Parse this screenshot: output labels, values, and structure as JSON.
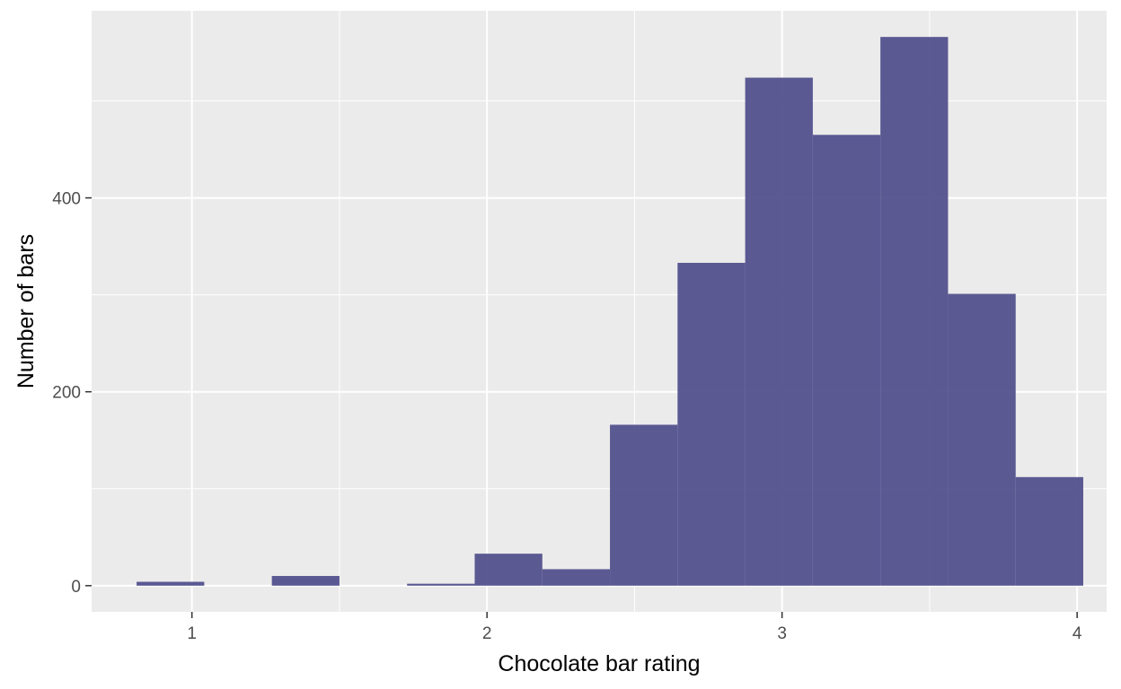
{
  "chart_data": {
    "type": "bar",
    "subtype": "histogram",
    "title": "",
    "xlabel": "Chocolate bar rating",
    "ylabel": "Number of bars",
    "xlim": [
      0.66,
      4.1
    ],
    "ylim": [
      -27,
      593
    ],
    "x_ticks": [
      1,
      2,
      3,
      4
    ],
    "y_ticks": [
      0,
      200,
      400
    ],
    "x_tick_labels": [
      "1",
      "2",
      "3",
      "4"
    ],
    "y_tick_labels": [
      "0",
      "200",
      "400"
    ],
    "grid": true,
    "panel_background": "#ebebeb",
    "grid_color": "#ffffff",
    "bar_color": "#4e4c8a",
    "bins": [
      {
        "x0": 0.8125,
        "x1": 1.0417,
        "count": 4
      },
      {
        "x0": 1.0417,
        "x1": 1.2708,
        "count": 0
      },
      {
        "x0": 1.2708,
        "x1": 1.5,
        "count": 10
      },
      {
        "x0": 1.5,
        "x1": 1.7292,
        "count": 0
      },
      {
        "x0": 1.7292,
        "x1": 1.9583,
        "count": 2
      },
      {
        "x0": 1.9583,
        "x1": 2.1875,
        "count": 33
      },
      {
        "x0": 2.1875,
        "x1": 2.4167,
        "count": 17
      },
      {
        "x0": 2.4167,
        "x1": 2.6458,
        "count": 166
      },
      {
        "x0": 2.6458,
        "x1": 2.875,
        "count": 333
      },
      {
        "x0": 2.875,
        "x1": 3.1042,
        "count": 524
      },
      {
        "x0": 3.1042,
        "x1": 3.3333,
        "count": 465
      },
      {
        "x0": 3.3333,
        "x1": 3.5625,
        "count": 566
      },
      {
        "x0": 3.5625,
        "x1": 3.7917,
        "count": 301
      },
      {
        "x0": 3.7917,
        "x1": 4.0208,
        "count": 112
      }
    ]
  }
}
